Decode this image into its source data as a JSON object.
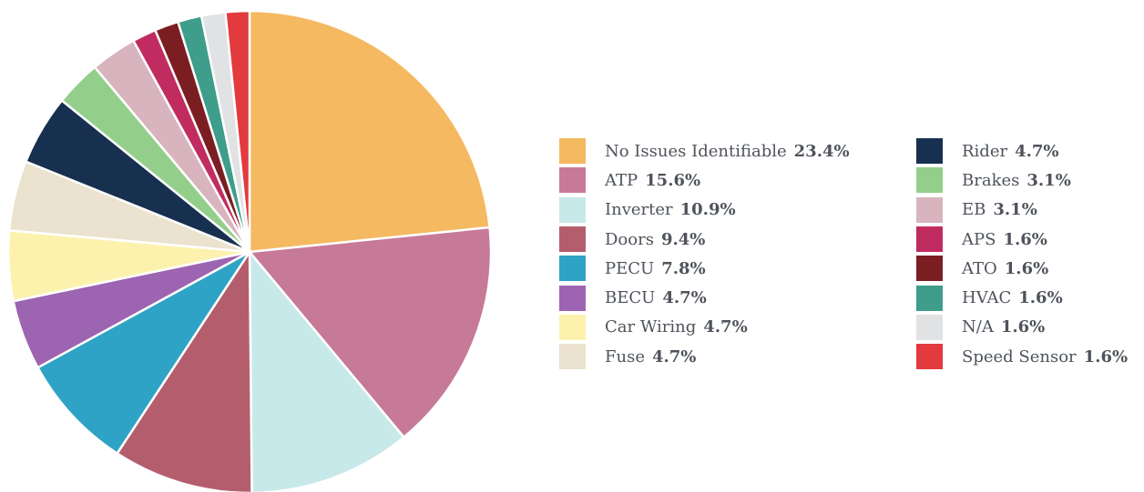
{
  "chart_data": {
    "type": "pie",
    "legend_placement": "right",
    "slices": [
      {
        "label": "No Issues Identifiable",
        "value_text": "23.4%",
        "value": 23.4,
        "color": "#f5b961",
        "legend_column": 0
      },
      {
        "label": "ATP",
        "value_text": "15.6%",
        "value": 15.6,
        "color": "#c67a97",
        "legend_column": 0
      },
      {
        "label": "Inverter",
        "value_text": "10.9%",
        "value": 10.9,
        "color": "#c8e9ea",
        "legend_column": 0
      },
      {
        "label": "Doors",
        "value_text": "9.4%",
        "value": 9.4,
        "color": "#b45e6d",
        "legend_column": 0
      },
      {
        "label": "PECU",
        "value_text": "7.8%",
        "value": 7.8,
        "color": "#2fa3c6",
        "legend_column": 0
      },
      {
        "label": "BECU",
        "value_text": "4.7%",
        "value": 4.7,
        "color": "#9d64b1",
        "legend_column": 0
      },
      {
        "label": "Car Wiring",
        "value_text": "4.7%",
        "value": 4.7,
        "color": "#fcf2ae",
        "legend_column": 0
      },
      {
        "label": "Fuse",
        "value_text": "4.7%",
        "value": 4.7,
        "color": "#ebe2cf",
        "legend_column": 0
      },
      {
        "label": "Rider",
        "value_text": "4.7%",
        "value": 4.7,
        "color": "#18304f",
        "legend_column": 1
      },
      {
        "label": "Brakes",
        "value_text": "3.1%",
        "value": 3.1,
        "color": "#93cf8b",
        "legend_column": 1
      },
      {
        "label": "EB",
        "value_text": "3.1%",
        "value": 3.1,
        "color": "#d8b4bf",
        "legend_column": 1
      },
      {
        "label": "APS",
        "value_text": "1.6%",
        "value": 1.6,
        "color": "#c12c60",
        "legend_column": 1
      },
      {
        "label": "ATO",
        "value_text": "1.6%",
        "value": 1.6,
        "color": "#7b1e22",
        "legend_column": 1
      },
      {
        "label": "HVAC",
        "value_text": "1.6%",
        "value": 1.6,
        "color": "#3e9d8b",
        "legend_column": 1
      },
      {
        "label": "N/A",
        "value_text": "1.6%",
        "value": 1.6,
        "color": "#e1e2e3",
        "legend_column": 1
      },
      {
        "label": "Speed Sensor",
        "value_text": "1.6%",
        "value": 1.6,
        "color": "#e23a3d",
        "legend_column": 1
      }
    ]
  }
}
